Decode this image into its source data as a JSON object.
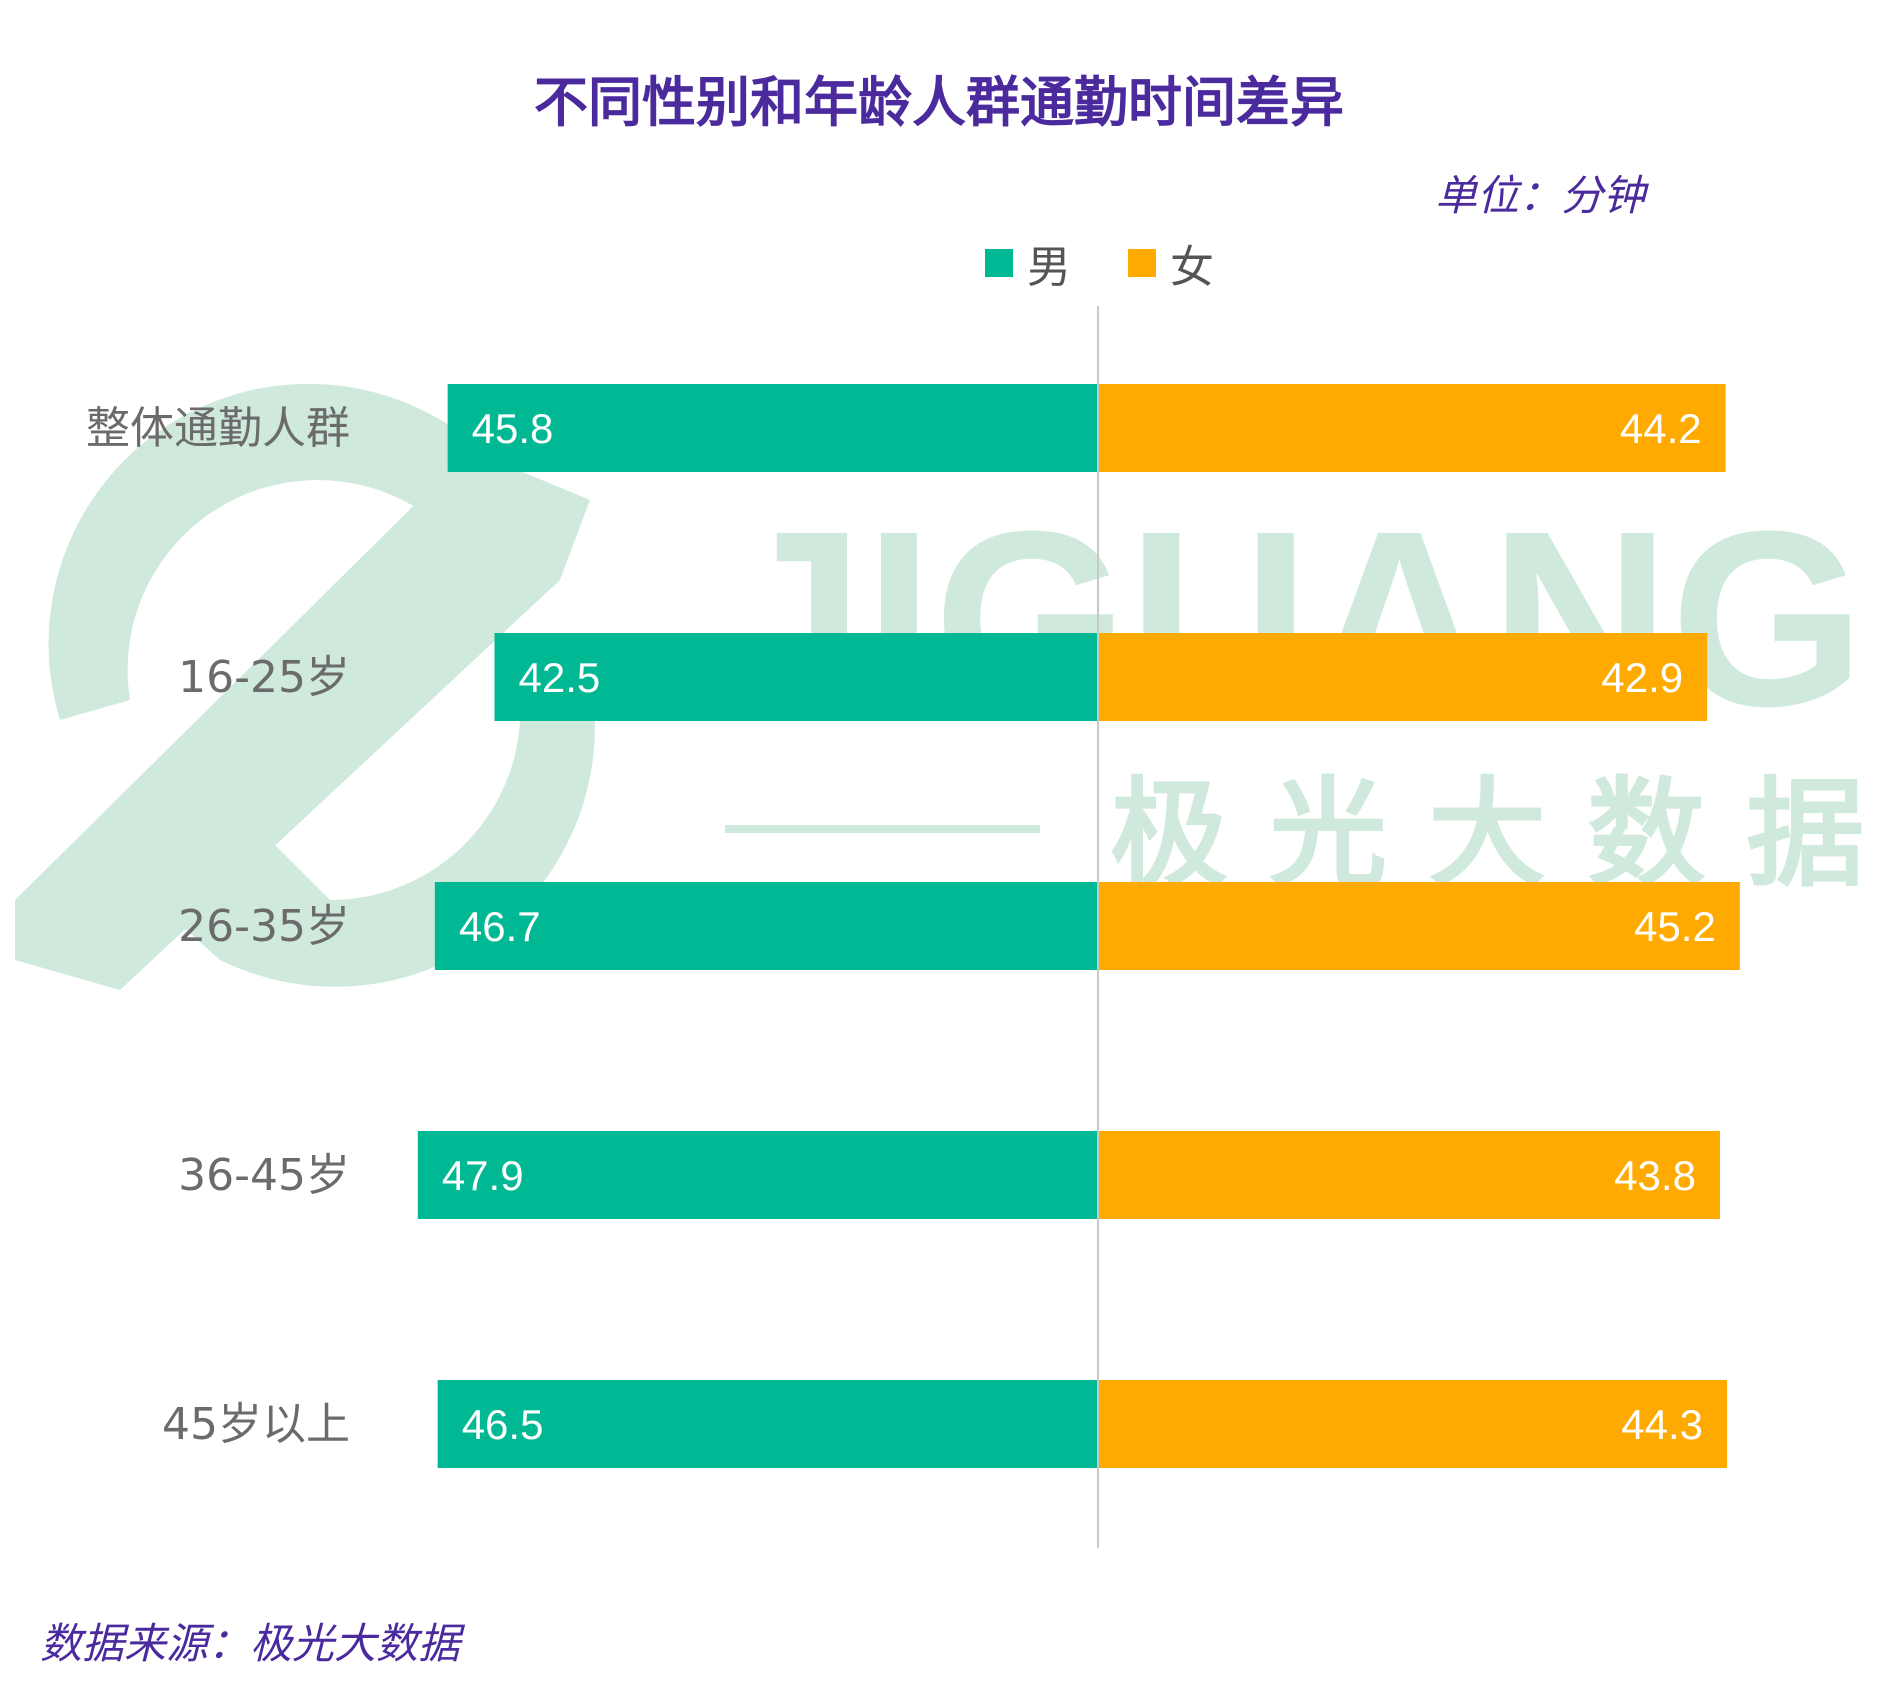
{
  "title": "不同性别和年龄人群通勤时间差异",
  "unit": "单位：分钟",
  "source": "数据来源：极光大数据",
  "watermark": {
    "text_latin": "JIGUANG",
    "text_cn": "极 光 大 数 据"
  },
  "colors": {
    "male": "#00b894",
    "female": "#ffaa00",
    "watermark": "#cfeadc",
    "title": "#4b2a9e",
    "axis": "#c8c8c8",
    "label": "#6b6b6b"
  },
  "chart_data": {
    "type": "bar",
    "orientation": "horizontal-butterfly",
    "categories": [
      "整体通勤人群",
      "16-25岁",
      "26-35岁",
      "36-45岁",
      "45岁以上"
    ],
    "series": [
      {
        "name": "男",
        "values": [
          45.8,
          42.5,
          46.7,
          47.9,
          46.5
        ]
      },
      {
        "name": "女",
        "values": [
          44.2,
          42.9,
          45.2,
          43.8,
          44.3
        ]
      }
    ],
    "legend_position": "top-center",
    "grid": false
  }
}
